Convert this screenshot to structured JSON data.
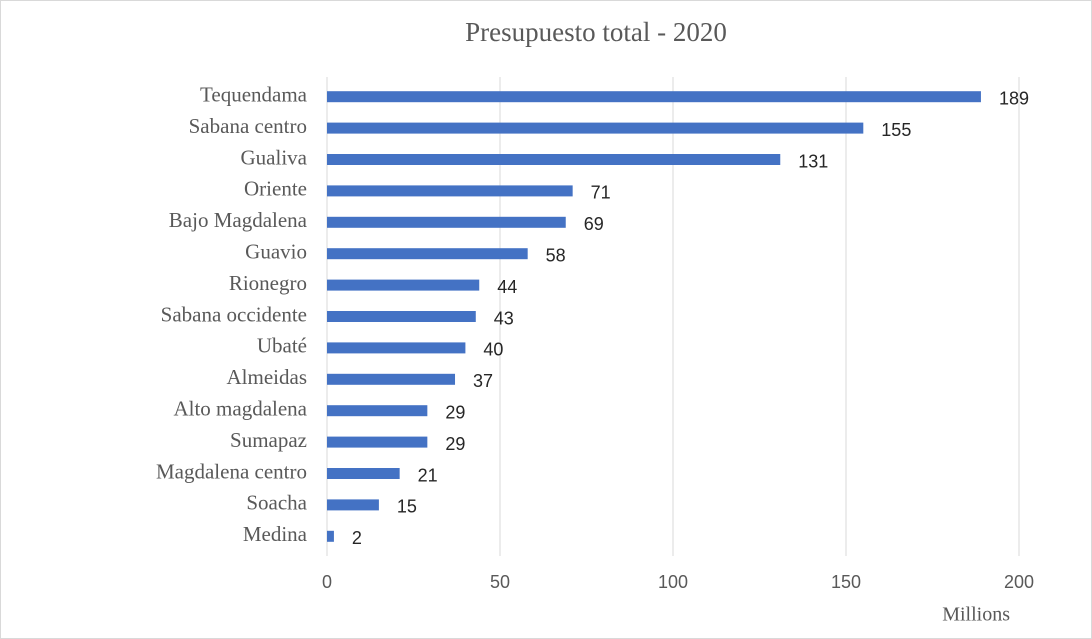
{
  "chart_data": {
    "type": "bar",
    "orientation": "horizontal",
    "title": "Presupuesto total - 2020",
    "x_axis_unit": "Millions",
    "categories": [
      "Tequendama",
      "Sabana centro",
      "Gualiva",
      "Oriente",
      "Bajo Magdalena",
      "Guavio",
      "Rionegro",
      "Sabana occidente",
      "Ubaté",
      "Almeidas",
      "Alto magdalena",
      "Sumapaz",
      "Magdalena centro",
      "Soacha",
      "Medina"
    ],
    "values": [
      189,
      155,
      131,
      71,
      69,
      58,
      44,
      43,
      40,
      37,
      29,
      29,
      21,
      15,
      2
    ],
    "color": "#4472c4",
    "xlim": [
      0,
      200
    ],
    "xticks": [
      0,
      50,
      100,
      150,
      200
    ],
    "grid": true
  }
}
